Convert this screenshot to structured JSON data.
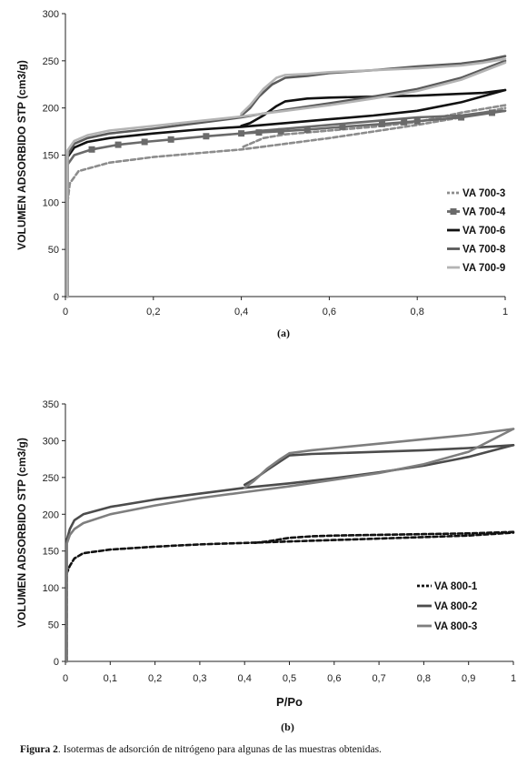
{
  "caption": {
    "label": "Figura 2",
    "text": ". Isotermas de adsorción de nitrógeno para algunas de las muestras obtenidas."
  },
  "chart_data": [
    {
      "panel_label": "(a)",
      "type": "line",
      "xlabel": "",
      "ylabel": "VOLUMEN ADSORBIDO STP (cm3/g)",
      "xlim": [
        0,
        1
      ],
      "ylim": [
        0,
        300
      ],
      "x_ticks": [
        "0",
        "0,2",
        "0,4",
        "0,6",
        "0,8",
        "1"
      ],
      "y_ticks": [
        "0",
        "50",
        "100",
        "150",
        "200",
        "250",
        "300"
      ],
      "grid": false,
      "legend_position": "right",
      "series": [
        {
          "name": "VA 700-3",
          "color": "#8c8c8c",
          "dash": true,
          "marker": "none",
          "adsorption": [
            [
              0.005,
              0
            ],
            [
              0.005,
              100
            ],
            [
              0.01,
              120
            ],
            [
              0.03,
              133
            ],
            [
              0.1,
              142
            ],
            [
              0.2,
              148
            ],
            [
              0.3,
              152
            ],
            [
              0.4,
              156
            ],
            [
              0.5,
              162
            ],
            [
              0.6,
              168
            ],
            [
              0.7,
              175
            ],
            [
              0.8,
              182
            ],
            [
              0.9,
              190
            ],
            [
              1.0,
              200
            ]
          ],
          "desorption": [
            [
              1.0,
              203
            ],
            [
              0.9,
              195
            ],
            [
              0.8,
              185
            ],
            [
              0.7,
              180
            ],
            [
              0.6,
              176
            ],
            [
              0.5,
              172
            ],
            [
              0.45,
              168
            ],
            [
              0.42,
              162
            ],
            [
              0.4,
              158
            ]
          ]
        },
        {
          "name": "VA 700-4",
          "color": "#6a6a6a",
          "dash": false,
          "marker": "square",
          "adsorption": [
            [
              0.005,
              0
            ],
            [
              0.005,
              140
            ],
            [
              0.02,
              150
            ],
            [
              0.06,
              156
            ],
            [
              0.12,
              161
            ],
            [
              0.18,
              164
            ],
            [
              0.25,
              167
            ],
            [
              0.32,
              170
            ],
            [
              0.4,
              173
            ],
            [
              0.48,
              175
            ],
            [
              0.55,
              177
            ],
            [
              0.63,
              180
            ],
            [
              0.72,
              183
            ],
            [
              0.8,
              186
            ],
            [
              0.9,
              190
            ],
            [
              1.0,
              197
            ]
          ],
          "desorption": [
            [
              1.0,
              197
            ],
            [
              0.95,
              195
            ],
            [
              0.9,
              192
            ],
            [
              0.8,
              190
            ],
            [
              0.7,
              186
            ],
            [
              0.6,
              182
            ],
            [
              0.5,
              178
            ],
            [
              0.45,
              176
            ],
            [
              0.4,
              173
            ]
          ],
          "markers_x": [
            0.06,
            0.12,
            0.18,
            0.24,
            0.32,
            0.4,
            0.44,
            0.49,
            0.55,
            0.63,
            0.72,
            0.77,
            0.8,
            0.9,
            0.97
          ]
        },
        {
          "name": "VA 700-6",
          "color": "#111111",
          "dash": false,
          "marker": "none",
          "adsorption": [
            [
              0.005,
              0
            ],
            [
              0.005,
              148
            ],
            [
              0.02,
              158
            ],
            [
              0.05,
              164
            ],
            [
              0.1,
              168
            ],
            [
              0.2,
              173
            ],
            [
              0.3,
              177
            ],
            [
              0.4,
              180
            ],
            [
              0.5,
              184
            ],
            [
              0.6,
              188
            ],
            [
              0.7,
              192
            ],
            [
              0.8,
              197
            ],
            [
              0.9,
              206
            ],
            [
              1.0,
              219
            ]
          ],
          "desorption": [
            [
              1.0,
              219
            ],
            [
              0.95,
              216
            ],
            [
              0.9,
              215
            ],
            [
              0.8,
              213
            ],
            [
              0.7,
              212
            ],
            [
              0.6,
              211
            ],
            [
              0.55,
              210
            ],
            [
              0.5,
              207
            ],
            [
              0.48,
              202
            ],
            [
              0.45,
              192
            ],
            [
              0.42,
              184
            ],
            [
              0.4,
              181
            ]
          ]
        },
        {
          "name": "VA 700-8",
          "color": "#5a5a5a",
          "dash": false,
          "marker": "none",
          "adsorption": [
            [
              0.005,
              0
            ],
            [
              0.005,
              150
            ],
            [
              0.02,
              162
            ],
            [
              0.05,
              168
            ],
            [
              0.1,
              173
            ],
            [
              0.2,
              178
            ],
            [
              0.3,
              184
            ],
            [
              0.4,
              190
            ],
            [
              0.5,
              198
            ],
            [
              0.6,
              205
            ],
            [
              0.7,
              212
            ],
            [
              0.8,
              220
            ],
            [
              0.9,
              232
            ],
            [
              1.0,
              250
            ]
          ],
          "desorption": [
            [
              1.0,
              255
            ],
            [
              0.95,
              250
            ],
            [
              0.9,
              247
            ],
            [
              0.8,
              244
            ],
            [
              0.7,
              240
            ],
            [
              0.6,
              237
            ],
            [
              0.55,
              234
            ],
            [
              0.5,
              232
            ],
            [
              0.47,
              225
            ],
            [
              0.44,
              212
            ],
            [
              0.42,
              200
            ],
            [
              0.4,
              192
            ]
          ]
        },
        {
          "name": "VA 700-9",
          "color": "#b4b4b4",
          "dash": false,
          "marker": "none",
          "adsorption": [
            [
              0.005,
              0
            ],
            [
              0.005,
              155
            ],
            [
              0.02,
              165
            ],
            [
              0.05,
              171
            ],
            [
              0.1,
              176
            ],
            [
              0.2,
              181
            ],
            [
              0.3,
              186
            ],
            [
              0.4,
              191
            ],
            [
              0.5,
              197
            ],
            [
              0.6,
              203
            ],
            [
              0.7,
              210
            ],
            [
              0.8,
              218
            ],
            [
              0.9,
              230
            ],
            [
              1.0,
              248
            ]
          ],
          "desorption": [
            [
              1.0,
              252
            ],
            [
              0.95,
              248
            ],
            [
              0.9,
              245
            ],
            [
              0.8,
              242
            ],
            [
              0.7,
              240
            ],
            [
              0.6,
              238
            ],
            [
              0.55,
              236
            ],
            [
              0.5,
              235
            ],
            [
              0.48,
              232
            ],
            [
              0.45,
              220
            ],
            [
              0.42,
              203
            ],
            [
              0.4,
              194
            ]
          ]
        }
      ]
    },
    {
      "panel_label": "(b)",
      "type": "line",
      "xlabel": "P/Po",
      "ylabel": "VOLUMEN ADSORBIDO STP (cm3/g)",
      "xlim": [
        0,
        1
      ],
      "ylim": [
        0,
        350
      ],
      "x_ticks": [
        "0",
        "0,1",
        "0,2",
        "0,3",
        "0,4",
        "0,5",
        "0,6",
        "0,7",
        "0,8",
        "0,9",
        "1"
      ],
      "y_ticks": [
        "0",
        "50",
        "100",
        "150",
        "200",
        "250",
        "300",
        "350"
      ],
      "grid": false,
      "legend_position": "right",
      "series": [
        {
          "name": "VA 800-1",
          "color": "#111111",
          "dash": true,
          "marker": "none",
          "adsorption": [
            [
              0.003,
              0
            ],
            [
              0.003,
              120
            ],
            [
              0.01,
              130
            ],
            [
              0.02,
              140
            ],
            [
              0.04,
              147
            ],
            [
              0.1,
              152
            ],
            [
              0.2,
              156
            ],
            [
              0.3,
              159
            ],
            [
              0.4,
              161
            ],
            [
              0.5,
              163
            ],
            [
              0.6,
              165
            ],
            [
              0.7,
              167
            ],
            [
              0.8,
              169
            ],
            [
              0.9,
              171
            ],
            [
              1.0,
              175
            ]
          ],
          "desorption": [
            [
              1.0,
              176
            ],
            [
              0.9,
              174
            ],
            [
              0.8,
              173
            ],
            [
              0.7,
              172
            ],
            [
              0.6,
              171
            ],
            [
              0.55,
              170
            ],
            [
              0.5,
              168
            ],
            [
              0.48,
              166
            ],
            [
              0.45,
              163
            ],
            [
              0.42,
              161
            ]
          ]
        },
        {
          "name": "VA 800-2",
          "color": "#4c4c4c",
          "dash": false,
          "marker": "none",
          "adsorption": [
            [
              0.003,
              0
            ],
            [
              0.003,
              165
            ],
            [
              0.01,
              180
            ],
            [
              0.02,
              192
            ],
            [
              0.04,
              200
            ],
            [
              0.1,
              210
            ],
            [
              0.2,
              220
            ],
            [
              0.3,
              228
            ],
            [
              0.4,
              236
            ],
            [
              0.5,
              242
            ],
            [
              0.6,
              249
            ],
            [
              0.7,
              257
            ],
            [
              0.8,
              266
            ],
            [
              0.9,
              278
            ],
            [
              1.0,
              294
            ]
          ],
          "desorption": [
            [
              1.0,
              294
            ],
            [
              0.95,
              292
            ],
            [
              0.9,
              290
            ],
            [
              0.8,
              287
            ],
            [
              0.7,
              285
            ],
            [
              0.6,
              283
            ],
            [
              0.55,
              282
            ],
            [
              0.5,
              280
            ],
            [
              0.48,
              272
            ],
            [
              0.45,
              260
            ],
            [
              0.42,
              247
            ],
            [
              0.4,
              240
            ]
          ]
        },
        {
          "name": "VA 800-3",
          "color": "#7e7e7e",
          "dash": false,
          "marker": "none",
          "adsorption": [
            [
              0.003,
              0
            ],
            [
              0.003,
              160
            ],
            [
              0.01,
              172
            ],
            [
              0.02,
              180
            ],
            [
              0.04,
              188
            ],
            [
              0.1,
              200
            ],
            [
              0.2,
              212
            ],
            [
              0.3,
              222
            ],
            [
              0.4,
              230
            ],
            [
              0.5,
              238
            ],
            [
              0.6,
              247
            ],
            [
              0.7,
              256
            ],
            [
              0.8,
              268
            ],
            [
              0.9,
              285
            ],
            [
              1.0,
              316
            ]
          ],
          "desorption": [
            [
              1.0,
              316
            ],
            [
              0.95,
              312
            ],
            [
              0.9,
              308
            ],
            [
              0.8,
              302
            ],
            [
              0.7,
              296
            ],
            [
              0.6,
              290
            ],
            [
              0.55,
              287
            ],
            [
              0.5,
              283
            ],
            [
              0.48,
              275
            ],
            [
              0.45,
              262
            ],
            [
              0.42,
              245
            ],
            [
              0.4,
              236
            ]
          ]
        }
      ]
    }
  ]
}
